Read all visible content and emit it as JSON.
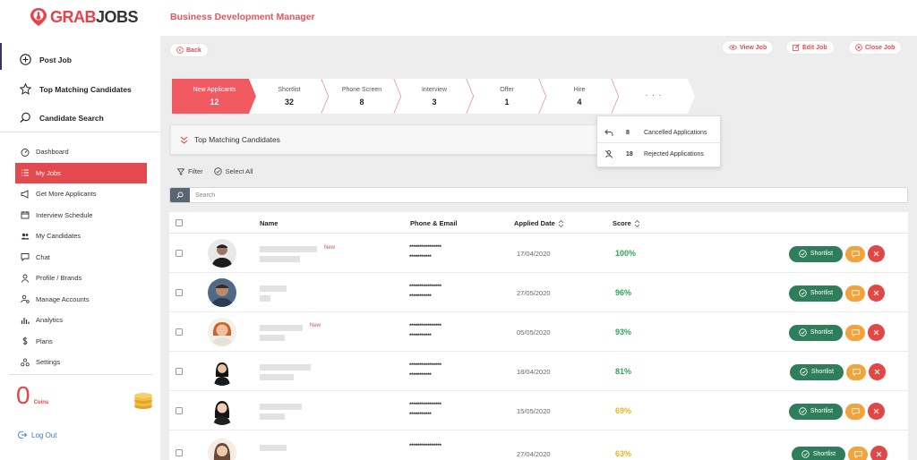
{
  "brand": {
    "logo_pre": "GRAB",
    "logo_post": "JOBS"
  },
  "header": {
    "page_title": "Business Development Manager"
  },
  "sidebar": {
    "primary": [
      {
        "label": "Post Job",
        "icon": "plus-circle-icon"
      },
      {
        "label": "Top Matching Candidates",
        "icon": "star-icon"
      },
      {
        "label": "Candidate Search",
        "icon": "search-icon"
      }
    ],
    "menu": [
      {
        "label": "Dashboard",
        "icon": "gauge-icon"
      },
      {
        "label": "My Jobs",
        "icon": "list-icon",
        "active": true
      },
      {
        "label": "Get More Applicants",
        "icon": "megaphone-icon"
      },
      {
        "label": "Interview Schedule",
        "icon": "calendar-icon"
      },
      {
        "label": "My Candidates",
        "icon": "people-icon"
      },
      {
        "label": "Chat",
        "icon": "chat-icon"
      },
      {
        "label": "Profile / Brands",
        "icon": "user-icon"
      },
      {
        "label": "Manage Accounts",
        "icon": "user-gear-icon"
      },
      {
        "label": "Analytics",
        "icon": "bar-chart-icon"
      },
      {
        "label": "Plans",
        "icon": "dollar-icon"
      },
      {
        "label": "Settings",
        "icon": "nodes-icon"
      }
    ],
    "coins_value": "0",
    "coins_label": "Coins",
    "logout_label": "Log Out"
  },
  "toolbar": {
    "back_label": "Back",
    "view_job_label": "View Job",
    "edit_job_label": "Edit Job",
    "close_job_label": "Close Job"
  },
  "pipeline": [
    {
      "label": "New Applicants",
      "count": "12",
      "active": true
    },
    {
      "label": "Shortlist",
      "count": "32"
    },
    {
      "label": "Phone Screen",
      "count": "8"
    },
    {
      "label": "Interview",
      "count": "3"
    },
    {
      "label": "Offer",
      "count": "1"
    },
    {
      "label": "Hire",
      "count": "4"
    },
    {
      "label": ". . .",
      "count": ""
    }
  ],
  "more_menu": [
    {
      "count": "8",
      "label": "Cancelled Applications",
      "icon": "undo-icon"
    },
    {
      "count": "18",
      "label": "Rejected Applications",
      "icon": "user-slash-icon"
    }
  ],
  "top_matching_panel": {
    "label": "Top Matching Candidates"
  },
  "filters": {
    "filter_label": "Filter",
    "select_all_label": "Select All"
  },
  "search": {
    "placeholder": "Search"
  },
  "table": {
    "headers": {
      "name": "Name",
      "contact": "Phone & Email",
      "applied": "Applied Date",
      "score": "Score"
    },
    "shortlist_label": "Shortlist",
    "new_label": "New",
    "rows": [
      {
        "phone": "****************",
        "email": "***********",
        "date": "17/04/2020",
        "score": "100%",
        "new": true
      },
      {
        "phone": "****************",
        "email": "***********",
        "date": "27/05/2020",
        "score": "96%",
        "new": false
      },
      {
        "phone": "****************",
        "email": "***********",
        "date": "05/05/2020",
        "score": "93%",
        "new": true
      },
      {
        "phone": "****************",
        "email": "***********",
        "date": "18/04/2020",
        "score": "81%",
        "new": false
      },
      {
        "phone": "****************",
        "email": "***********",
        "date": "15/05/2020",
        "score": "69%",
        "new": false
      },
      {
        "phone": "****************",
        "email": "",
        "date": "27/04/2020",
        "score": "63%",
        "new": false
      }
    ]
  },
  "colors": {
    "accent": "#e34a4f",
    "score_green": "#2fa55a",
    "score_yellow": "#e6b422",
    "shortlist": "#2e7d5b",
    "chat": "#f3a33b",
    "reject": "#e04848"
  }
}
